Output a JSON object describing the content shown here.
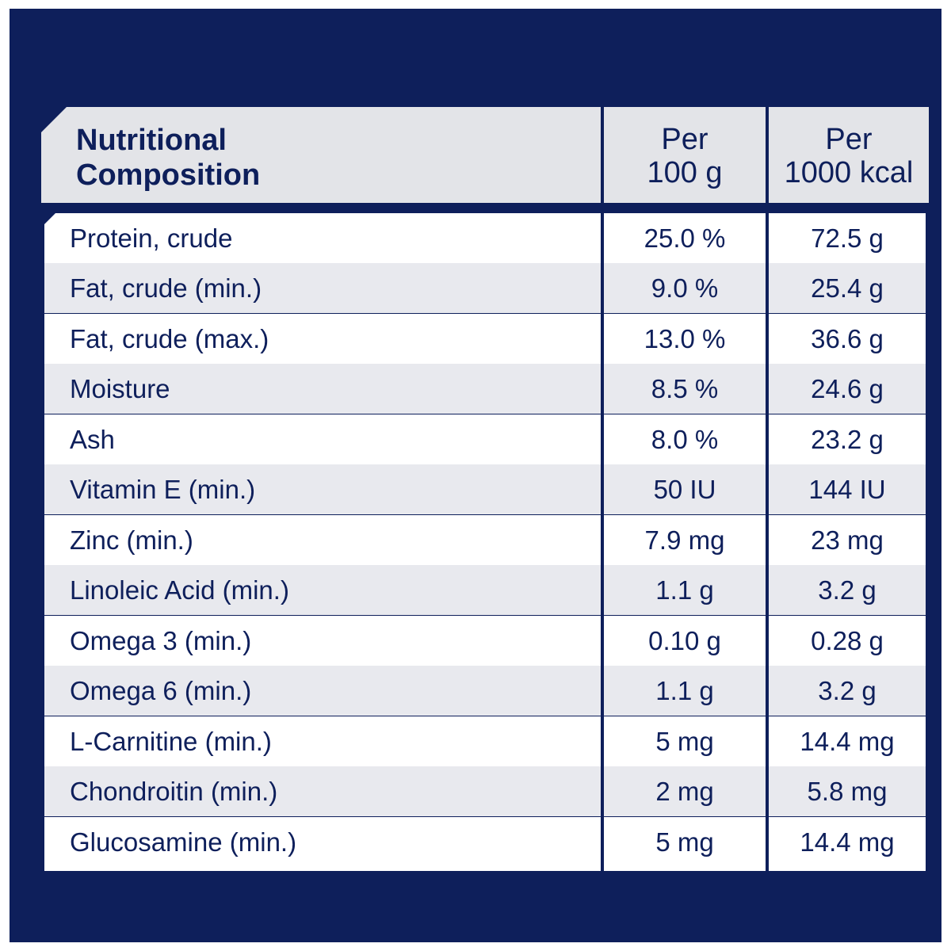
{
  "header": {
    "col1_line1": "Nutritional",
    "col1_line2": "Composition",
    "col2_line1": "Per",
    "col2_line2": "100 g",
    "col3_line1": "Per",
    "col3_line2": "1000 kcal"
  },
  "rows": [
    {
      "name": "Protein, crude",
      "per100g": "25.0 %",
      "per1000kcal": "72.5 g"
    },
    {
      "name": "Fat, crude (min.)",
      "per100g": "9.0 %",
      "per1000kcal": "25.4 g"
    },
    {
      "name": "Fat, crude (max.)",
      "per100g": "13.0 %",
      "per1000kcal": "36.6 g"
    },
    {
      "name": "Moisture",
      "per100g": "8.5 %",
      "per1000kcal": "24.6 g"
    },
    {
      "name": "Ash",
      "per100g": "8.0 %",
      "per1000kcal": "23.2 g"
    },
    {
      "name": "Vitamin E (min.)",
      "per100g": "50 IU",
      "per1000kcal": "144 IU"
    },
    {
      "name": "Zinc (min.)",
      "per100g": "7.9 mg",
      "per1000kcal": "23 mg"
    },
    {
      "name": "Linoleic Acid (min.)",
      "per100g": "1.1 g",
      "per1000kcal": "3.2 g"
    },
    {
      "name": "Omega 3 (min.)",
      "per100g": "0.10 g",
      "per1000kcal": "0.28 g"
    },
    {
      "name": "Omega 6 (min.)",
      "per100g": "1.1 g",
      "per1000kcal": "3.2 g"
    },
    {
      "name": "L-Carnitine (min.)",
      "per100g": "5 mg",
      "per1000kcal": "14.4 mg"
    },
    {
      "name": "Chondroitin (min.)",
      "per100g": "2 mg",
      "per1000kcal": "5.8 mg"
    },
    {
      "name": "Glucosamine (min.)",
      "per100g": "5 mg",
      "per1000kcal": "14.4 mg"
    }
  ],
  "colors": {
    "background": "#0e1f5b",
    "header_fill": "#e3e4e8",
    "row_light": "#ffffff",
    "row_grey": "#e8e9ee",
    "text": "#0e1f5b"
  }
}
